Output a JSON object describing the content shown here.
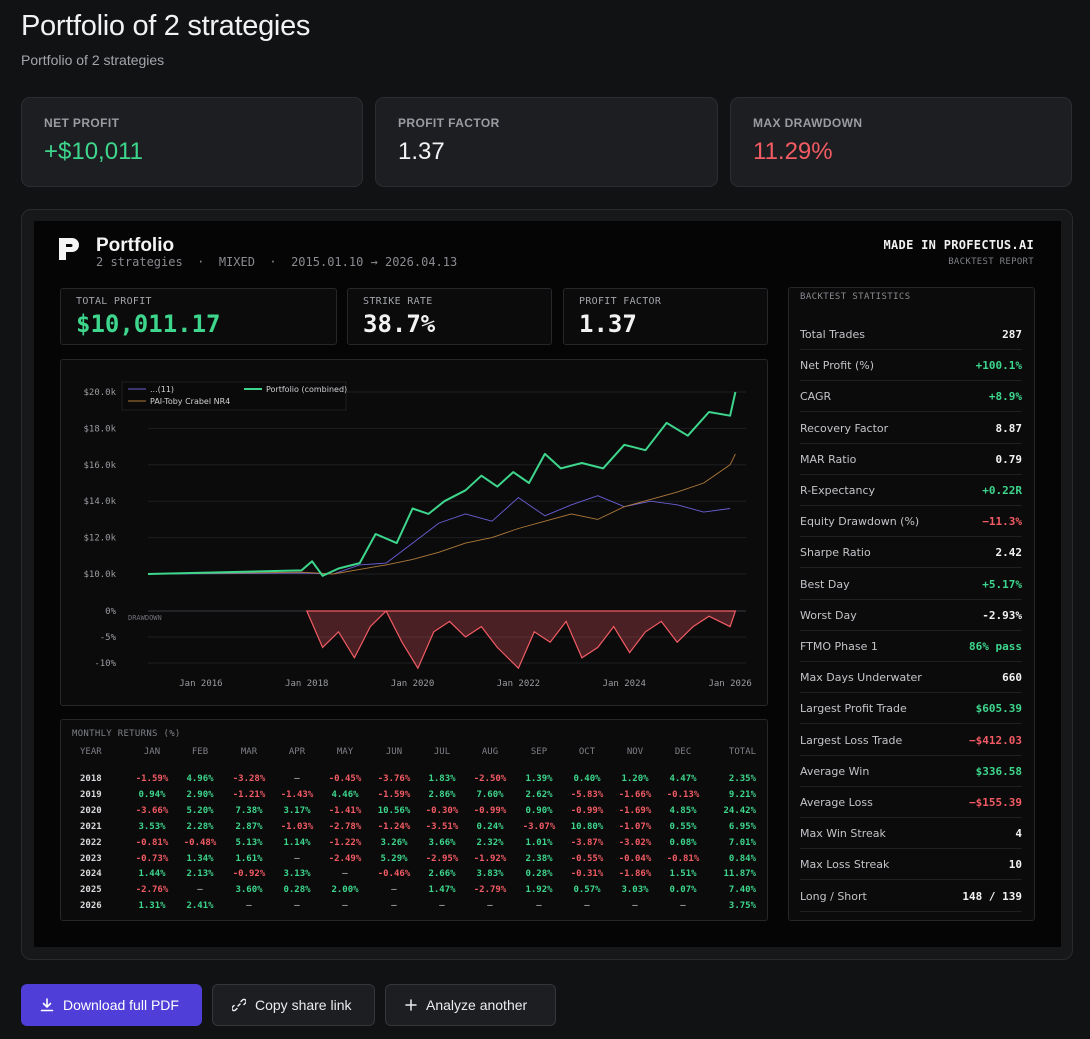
{
  "page": {
    "title": "Portfolio of 2 strategies",
    "subtitle": "Portfolio of 2 strategies"
  },
  "cards": [
    {
      "label": "NET PROFIT",
      "value": "+$10,011",
      "color": "#3dd68c"
    },
    {
      "label": "PROFIT FACTOR",
      "value": "1.37",
      "color": "#f2f2f2"
    },
    {
      "label": "MAX DRAWDOWN",
      "value": "11.29%",
      "color": "#f25b63"
    }
  ],
  "report": {
    "title": "Portfolio",
    "subtitle": "2 strategies  ·  MIXED  ·  2015.01.10 → 2026.04.13",
    "made_in": "MADE IN PROFECTUS.AI",
    "badge": "BACKTEST REPORT",
    "kpis": [
      {
        "label": "TOTAL PROFIT",
        "value": "$10,011.17",
        "color": "#3dd68c"
      },
      {
        "label": "STRIKE RATE",
        "value": "38.7%",
        "color": "#f2f2f2"
      },
      {
        "label": "PROFIT FACTOR",
        "value": "1.37",
        "color": "#f2f2f2"
      }
    ],
    "stats_title": "BACKTEST STATISTICS",
    "stats": [
      {
        "label": "Total Trades",
        "value": "287",
        "tone": "white"
      },
      {
        "label": "Net Profit (%)",
        "value": "+100.1%",
        "tone": "green"
      },
      {
        "label": "CAGR",
        "value": "+8.9%",
        "tone": "green"
      },
      {
        "label": "Recovery Factor",
        "value": "8.87",
        "tone": "white"
      },
      {
        "label": "MAR Ratio",
        "value": "0.79",
        "tone": "white"
      },
      {
        "label": "R-Expectancy",
        "value": "+0.22R",
        "tone": "green"
      },
      {
        "label": "Equity Drawdown (%)",
        "value": "−11.3%",
        "tone": "red"
      },
      {
        "label": "Sharpe Ratio",
        "value": "2.42",
        "tone": "white"
      },
      {
        "label": "Best Day",
        "value": "+5.17%",
        "tone": "green"
      },
      {
        "label": "Worst Day",
        "value": "-2.93%",
        "tone": "white"
      },
      {
        "label": "FTMO Phase 1",
        "value": "86% pass",
        "tone": "green"
      },
      {
        "label": "Max Days Underwater",
        "value": "660",
        "tone": "white"
      },
      {
        "label": "Largest Profit Trade",
        "value": "$605.39",
        "tone": "green"
      },
      {
        "label": "Largest Loss Trade",
        "value": "−$412.03",
        "tone": "red"
      },
      {
        "label": "Average Win",
        "value": "$336.58",
        "tone": "green"
      },
      {
        "label": "Average Loss",
        "value": "−$155.39",
        "tone": "red"
      },
      {
        "label": "Max Win Streak",
        "value": "4",
        "tone": "white"
      },
      {
        "label": "Max Loss Streak",
        "value": "10",
        "tone": "white"
      },
      {
        "label": "Long / Short",
        "value": "148 / 139",
        "tone": "white"
      }
    ],
    "monthly_title": "MONTHLY RETURNS (%)",
    "monthly_headers": [
      "YEAR",
      "JAN",
      "FEB",
      "MAR",
      "APR",
      "MAY",
      "JUN",
      "JUL",
      "AUG",
      "SEP",
      "OCT",
      "NOV",
      "DEC",
      "TOTAL"
    ],
    "monthly_rows": [
      [
        "2018",
        "-1.59%",
        "4.96%",
        "-3.28%",
        "—",
        "-0.45%",
        "-3.76%",
        "1.83%",
        "-2.50%",
        "1.39%",
        "0.40%",
        "1.20%",
        "4.47%",
        "2.35%"
      ],
      [
        "2019",
        "0.94%",
        "2.90%",
        "-1.21%",
        "-1.43%",
        "4.46%",
        "-1.59%",
        "2.86%",
        "7.60%",
        "2.62%",
        "-5.83%",
        "-1.66%",
        "-0.13%",
        "9.21%"
      ],
      [
        "2020",
        "-3.66%",
        "5.20%",
        "7.38%",
        "3.17%",
        "-1.41%",
        "10.56%",
        "-0.30%",
        "-0.99%",
        "0.90%",
        "-0.99%",
        "-1.69%",
        "4.85%",
        "24.42%"
      ],
      [
        "2021",
        "3.53%",
        "2.28%",
        "2.87%",
        "-1.03%",
        "-2.78%",
        "-1.24%",
        "-3.51%",
        "0.24%",
        "-3.07%",
        "10.80%",
        "-1.07%",
        "0.55%",
        "6.95%"
      ],
      [
        "2022",
        "-0.81%",
        "-0.48%",
        "5.13%",
        "1.14%",
        "-1.22%",
        "3.26%",
        "3.66%",
        "2.32%",
        "1.01%",
        "-3.87%",
        "-3.02%",
        "0.08%",
        "7.01%"
      ],
      [
        "2023",
        "-0.73%",
        "1.34%",
        "1.61%",
        "—",
        "-2.49%",
        "5.29%",
        "-2.95%",
        "-1.92%",
        "2.38%",
        "-0.55%",
        "-0.04%",
        "-0.81%",
        "0.84%"
      ],
      [
        "2024",
        "1.44%",
        "2.13%",
        "-0.92%",
        "3.13%",
        "—",
        "-0.46%",
        "2.66%",
        "3.83%",
        "0.28%",
        "-0.31%",
        "-1.86%",
        "1.51%",
        "11.87%"
      ],
      [
        "2025",
        "-2.76%",
        "—",
        "3.60%",
        "0.28%",
        "2.00%",
        "—",
        "1.47%",
        "-2.79%",
        "1.92%",
        "0.57%",
        "3.03%",
        "0.07%",
        "7.40%"
      ],
      [
        "2026",
        "1.31%",
        "2.41%",
        "—",
        "—",
        "—",
        "—",
        "—",
        "—",
        "—",
        "—",
        "—",
        "—",
        "3.75%"
      ]
    ]
  },
  "chart_data": {
    "type": "line",
    "legend": [
      "...(11)",
      "Portfolio (combined)",
      "PAI-Toby Crabel NR4"
    ],
    "y_tick_labels": [
      "$20.0k",
      "$18.0k",
      "$16.0k",
      "$14.0k",
      "$12.0k",
      "$10.0k"
    ],
    "ylim": [
      10000,
      20000
    ],
    "dd_tick_labels": [
      "0%",
      "-5%",
      "-10%"
    ],
    "dd_label": "DRAWDOWN",
    "x_tick_labels": [
      "Jan 2016",
      "Jan 2018",
      "Jan 2020",
      "Jan 2022",
      "Jan 2024",
      "Jan 2026"
    ],
    "colors": {
      "combined": "#3dd68c",
      "s1": "#6a5fd4",
      "s2": "#b07a3a",
      "dd": "#f25b63"
    },
    "series": [
      {
        "name": "Portfolio (combined)",
        "x": [
          2015.0,
          2017.9,
          2018.1,
          2018.3,
          2018.6,
          2019.0,
          2019.3,
          2019.7,
          2020.0,
          2020.3,
          2020.6,
          2021.0,
          2021.3,
          2021.6,
          2021.9,
          2022.2,
          2022.5,
          2022.8,
          2023.2,
          2023.6,
          2024.0,
          2024.4,
          2024.8,
          2025.2,
          2025.6,
          2026.0,
          2026.1
        ],
        "values": [
          10000,
          10200,
          10700,
          9900,
          10300,
          10600,
          12200,
          11700,
          13600,
          13300,
          14000,
          14600,
          15400,
          14800,
          15600,
          15000,
          16600,
          15800,
          16100,
          15800,
          17100,
          16800,
          18300,
          17600,
          18900,
          18700,
          20000
        ]
      },
      {
        "name": "...(11)",
        "x": [
          2015.0,
          2017.9,
          2018.5,
          2019.0,
          2019.5,
          2020.0,
          2020.5,
          2021.0,
          2021.5,
          2022.0,
          2022.5,
          2023.0,
          2023.5,
          2024.0,
          2024.5,
          2025.0,
          2025.5,
          2026.0
        ],
        "values": [
          10000,
          10050,
          10000,
          10500,
          10600,
          11700,
          12800,
          13300,
          12900,
          14200,
          13200,
          13800,
          14300,
          13700,
          14000,
          13800,
          13400,
          13600
        ]
      },
      {
        "name": "PAI-Toby Crabel NR4",
        "x": [
          2015.0,
          2017.9,
          2018.5,
          2019.0,
          2019.5,
          2020.0,
          2020.5,
          2021.0,
          2021.5,
          2022.0,
          2022.5,
          2023.0,
          2023.5,
          2024.0,
          2024.5,
          2025.0,
          2025.5,
          2026.0,
          2026.1
        ],
        "values": [
          10000,
          10100,
          10000,
          10250,
          10500,
          10800,
          11200,
          11700,
          12000,
          12500,
          12900,
          13300,
          13000,
          13700,
          14100,
          14500,
          15000,
          16000,
          16600
        ]
      }
    ],
    "drawdown": {
      "x": [
        2018.0,
        2018.3,
        2018.6,
        2018.9,
        2019.2,
        2019.5,
        2019.8,
        2020.1,
        2020.4,
        2020.7,
        2021.0,
        2021.3,
        2021.6,
        2022.0,
        2022.3,
        2022.6,
        2022.9,
        2023.2,
        2023.5,
        2023.8,
        2024.1,
        2024.4,
        2024.7,
        2025.0,
        2025.3,
        2025.6,
        2026.0,
        2026.1
      ],
      "values": [
        0,
        -7,
        -4,
        -9,
        -3,
        0,
        -6,
        -11,
        -4,
        -2,
        -5,
        -3,
        -7,
        -11,
        -4,
        -6,
        -2,
        -9,
        -7,
        -3,
        -8,
        -4,
        -2,
        -6,
        -3,
        -1,
        -3,
        0
      ]
    }
  },
  "actions": {
    "download": "Download full PDF",
    "copy": "Copy share link",
    "analyze": "Analyze another"
  }
}
